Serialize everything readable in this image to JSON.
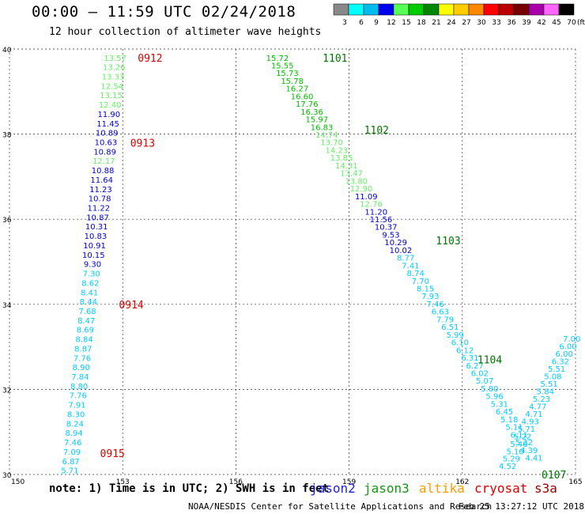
{
  "header": {
    "title": "00:00 – 11:59 UTC 02/24/2018",
    "subtitle": "12 hour collection of altimeter wave heights"
  },
  "footer": {
    "note": "note: 1) Time is in UTC; 2) SWH is in feet",
    "satellites": [
      {
        "name": "jason2",
        "color": "#1f1fdd"
      },
      {
        "name": "jason3",
        "color": "#119911"
      },
      {
        "name": "altika",
        "color": "#ff9900"
      },
      {
        "name": "cryosat",
        "color": "#dd0000"
      },
      {
        "name": "s3a",
        "color": "#990000"
      }
    ],
    "credit": "NOAA/NESDIS Center for Satellite Applications and Research",
    "generated": "Feb 25 13:27:12 UTC 2018"
  },
  "legend": {
    "swatches": [
      {
        "label": "3",
        "color": "#888888"
      },
      {
        "label": "6",
        "color": "#00ffff"
      },
      {
        "label": "9",
        "color": "#00bbee"
      },
      {
        "label": "12",
        "color": "#0000ee"
      },
      {
        "label": "15",
        "color": "#55ff55"
      },
      {
        "label": "18",
        "color": "#00cc00"
      },
      {
        "label": "21",
        "color": "#008800"
      },
      {
        "label": "24",
        "color": "#ffff00"
      },
      {
        "label": "27",
        "color": "#ffcc00"
      },
      {
        "label": "30",
        "color": "#ff8800"
      },
      {
        "label": "33",
        "color": "#ff0000"
      },
      {
        "label": "36",
        "color": "#bb0000"
      },
      {
        "label": "39",
        "color": "#770000"
      },
      {
        "label": "42",
        "color": "#aa00aa"
      },
      {
        "label": "45",
        "color": "#ff66ff"
      },
      {
        "label": "70",
        "color": "#000000"
      }
    ],
    "unit": "(ft)"
  },
  "chart_data": {
    "type": "scatter",
    "xlim": [
      150,
      165
    ],
    "ylim": [
      30,
      40
    ],
    "xticks": [
      150,
      153,
      156,
      159,
      162,
      165
    ],
    "yticks": [
      30,
      32,
      34,
      36,
      38,
      40
    ],
    "grid": true,
    "colors": {
      "c6": "#00ccff",
      "c12": "#0000dd",
      "c15": "#66ee66",
      "c18": "#00bb00",
      "time": "#dd0000",
      "time2": "#007700"
    },
    "series": [
      {
        "name": "cryosat",
        "time_color": "time",
        "lon_start": 152.8,
        "lon_end": 151.6,
        "lat_start": 39.8,
        "lat_end": 30.1,
        "values": [
          [
            13.57,
            "c15"
          ],
          [
            13.26,
            "c15"
          ],
          [
            13.33,
            "c15"
          ],
          [
            12.54,
            "c15"
          ],
          [
            13.15,
            "c15"
          ],
          [
            12.4,
            "c15"
          ],
          [
            11.9,
            "c12"
          ],
          [
            11.45,
            "c12"
          ],
          [
            10.89,
            "c12"
          ],
          [
            10.63,
            "c12"
          ],
          [
            10.89,
            "c12"
          ],
          [
            12.17,
            "c15"
          ],
          [
            10.88,
            "c12"
          ],
          [
            11.64,
            "c12"
          ],
          [
            11.23,
            "c12"
          ],
          [
            10.78,
            "c12"
          ],
          [
            11.22,
            "c12"
          ],
          [
            10.87,
            "c12"
          ],
          [
            10.31,
            "c12"
          ],
          [
            10.83,
            "c12"
          ],
          [
            10.91,
            "c12"
          ],
          [
            10.15,
            "c12"
          ],
          [
            9.3,
            "c12"
          ],
          [
            7.3,
            "c6"
          ],
          [
            8.62,
            "c6"
          ],
          [
            8.41,
            "c6"
          ],
          [
            8.44,
            "c6"
          ],
          [
            7.68,
            "c6"
          ],
          [
            8.47,
            "c6"
          ],
          [
            8.69,
            "c6"
          ],
          [
            8.84,
            "c6"
          ],
          [
            8.87,
            "c6"
          ],
          [
            7.76,
            "c6"
          ],
          [
            8.9,
            "c6"
          ],
          [
            7.84,
            "c6"
          ],
          [
            8.8,
            "c6"
          ],
          [
            7.76,
            "c6"
          ],
          [
            7.91,
            "c6"
          ],
          [
            8.3,
            "c6"
          ],
          [
            8.24,
            "c6"
          ],
          [
            8.94,
            "c6"
          ],
          [
            7.46,
            "c6"
          ],
          [
            7.09,
            "c6"
          ],
          [
            6.87,
            "c6"
          ],
          [
            5.71,
            "c6"
          ]
        ],
        "times": [
          {
            "t": "0912",
            "lat": 39.8,
            "lon": 153.4
          },
          {
            "t": "0913",
            "lat": 37.8,
            "lon": 153.2
          },
          {
            "t": "0914",
            "lat": 34.0,
            "lon": 152.9
          },
          {
            "t": "0915",
            "lat": 30.5,
            "lon": 152.4
          }
        ]
      },
      {
        "name": "jason3",
        "time_color": "time2",
        "lon_start": 157.1,
        "lon_end": 163.9,
        "lat_start": 39.8,
        "lat_end": 30.4,
        "values": [
          [
            15.72,
            "c18"
          ],
          [
            15.55,
            "c18"
          ],
          [
            15.73,
            "c18"
          ],
          [
            15.78,
            "c18"
          ],
          [
            16.27,
            "c18"
          ],
          [
            16.6,
            "c18"
          ],
          [
            17.76,
            "c18"
          ],
          [
            16.36,
            "c18"
          ],
          [
            15.97,
            "c18"
          ],
          [
            16.83,
            "c18"
          ],
          [
            14.74,
            "c15"
          ],
          [
            13.7,
            "c15"
          ],
          [
            14.23,
            "c15"
          ],
          [
            13.85,
            "c15"
          ],
          [
            14.31,
            "c15"
          ],
          [
            13.47,
            "c15"
          ],
          [
            13.8,
            "c15"
          ],
          [
            12.9,
            "c15"
          ],
          [
            11.09,
            "c12"
          ],
          [
            12.76,
            "c15"
          ],
          [
            11.2,
            "c12"
          ],
          [
            11.56,
            "c12"
          ],
          [
            10.37,
            "c12"
          ],
          [
            9.53,
            "c12"
          ],
          [
            10.29,
            "c12"
          ],
          [
            10.02,
            "c12"
          ],
          [
            8.77,
            "c6"
          ],
          [
            7.41,
            "c6"
          ],
          [
            8.74,
            "c6"
          ],
          [
            7.7,
            "c6"
          ],
          [
            8.15,
            "c6"
          ],
          [
            7.93,
            "c6"
          ],
          [
            7.46,
            "c6"
          ],
          [
            6.63,
            "c6"
          ],
          [
            7.79,
            "c6"
          ],
          [
            6.51,
            "c6"
          ],
          [
            5.99,
            "c6"
          ],
          [
            6.1,
            "c6"
          ],
          [
            6.12,
            "c6"
          ],
          [
            6.31,
            "c6"
          ],
          [
            6.27,
            "c6"
          ],
          [
            6.02,
            "c6"
          ],
          [
            5.07,
            "c6"
          ],
          [
            5.8,
            "c6"
          ],
          [
            5.96,
            "c6"
          ],
          [
            5.31,
            "c6"
          ],
          [
            6.45,
            "c6"
          ],
          [
            5.18,
            "c6"
          ],
          [
            5.11,
            "c6"
          ],
          [
            6.11,
            "c6"
          ],
          [
            5.32,
            "c6"
          ],
          [
            4.39,
            "c6"
          ],
          [
            4.41,
            "c6"
          ]
        ],
        "times": [
          {
            "t": "1101",
            "lat": 39.8,
            "lon": 158.3
          },
          {
            "t": "1102",
            "lat": 38.1,
            "lon": 159.4
          },
          {
            "t": "1103",
            "lat": 35.5,
            "lon": 161.3
          },
          {
            "t": "1104",
            "lat": 32.7,
            "lon": 162.4
          }
        ]
      },
      {
        "name": "jason2",
        "time_color": "time2",
        "lon_start": 164.9,
        "lon_end": 163.2,
        "lat_start": 33.2,
        "lat_end": 30.2,
        "values": [
          [
            7.0,
            "c6"
          ],
          [
            6.0,
            "c6"
          ],
          [
            6.0,
            "c6"
          ],
          [
            6.32,
            "c6"
          ],
          [
            5.51,
            "c6"
          ],
          [
            5.08,
            "c6"
          ],
          [
            5.51,
            "c6"
          ],
          [
            5.84,
            "c6"
          ],
          [
            5.23,
            "c6"
          ],
          [
            4.77,
            "c6"
          ],
          [
            4.71,
            "c6"
          ],
          [
            4.93,
            "c6"
          ],
          [
            5.71,
            "c6"
          ],
          [
            5.22,
            "c6"
          ],
          [
            5.46,
            "c6"
          ],
          [
            5.1,
            "c6"
          ],
          [
            5.29,
            "c6"
          ],
          [
            4.52,
            "c6"
          ]
        ],
        "times": [
          {
            "t": "0107",
            "lat": 30.0,
            "lon": 164.1
          }
        ]
      }
    ]
  }
}
